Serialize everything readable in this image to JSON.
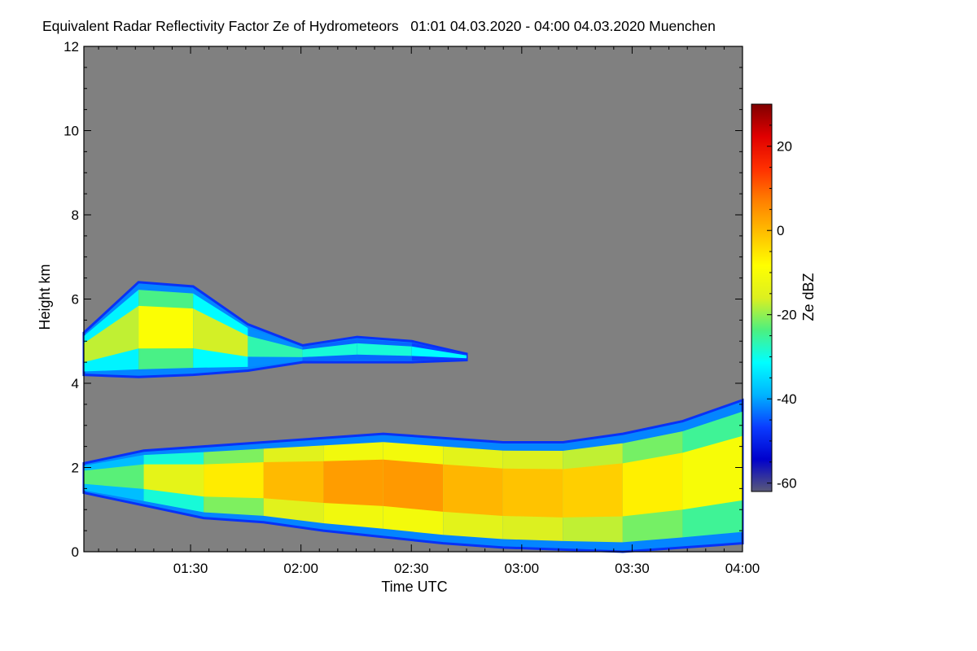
{
  "chart_data": {
    "type": "heatmap",
    "title": "Equivalent Radar Reflectivity Factor Ze of Hydrometeors   01:01 04.03.2020 - 04:00 04.03.2020 Muenchen",
    "xlabel": "Time UTC",
    "ylabel": "Height km",
    "colorbar_label": "Ze dBZ",
    "x_range": [
      "01:01",
      "04:00"
    ],
    "x_ticks": [
      "01:30",
      "02:00",
      "02:30",
      "03:00",
      "03:30",
      "04:00"
    ],
    "ylim": [
      0,
      12
    ],
    "y_ticks": [
      0,
      2,
      4,
      6,
      8,
      10,
      12
    ],
    "color_range": [
      -62,
      30
    ],
    "color_ticks": [
      -60,
      -40,
      -20,
      0,
      20
    ],
    "background_color": "#808080",
    "colormap": [
      "#5a5a78",
      "#0000cc",
      "#0a3cff",
      "#00b4ff",
      "#00ffff",
      "#4cf080",
      "#dcf020",
      "#ffff00",
      "#ffc000",
      "#ff8000",
      "#ff3000",
      "#e00000",
      "#800000"
    ],
    "layers": [
      {
        "name": "upper cloud layer",
        "time_range": [
          "01:01",
          "02:45"
        ],
        "base_km": [
          4.2,
          4.15,
          4.2,
          4.3,
          4.5,
          4.5,
          4.5,
          4.55
        ],
        "top_km": [
          5.2,
          6.4,
          6.3,
          5.4,
          4.9,
          5.1,
          5.0,
          4.7
        ],
        "ze_dBZ": [
          -25,
          -10,
          -8,
          -25,
          -28,
          -30,
          -28,
          -35
        ]
      },
      {
        "name": "lower precipitation layer",
        "time_range": [
          "01:01",
          "04:00"
        ],
        "base_km": [
          1.4,
          1.1,
          0.8,
          0.7,
          0.5,
          0.35,
          0.2,
          0.1,
          0.05,
          0.0,
          0.1,
          0.2
        ],
        "top_km": [
          2.1,
          2.4,
          2.5,
          2.6,
          2.7,
          2.8,
          2.7,
          2.6,
          2.6,
          2.8,
          3.1,
          3.6
        ],
        "ze_dBZ": [
          -28,
          -18,
          -10,
          -2,
          2,
          5,
          3,
          -2,
          0,
          -5,
          -8,
          -12
        ]
      }
    ],
    "grid": false,
    "legend": "colorbar right"
  }
}
